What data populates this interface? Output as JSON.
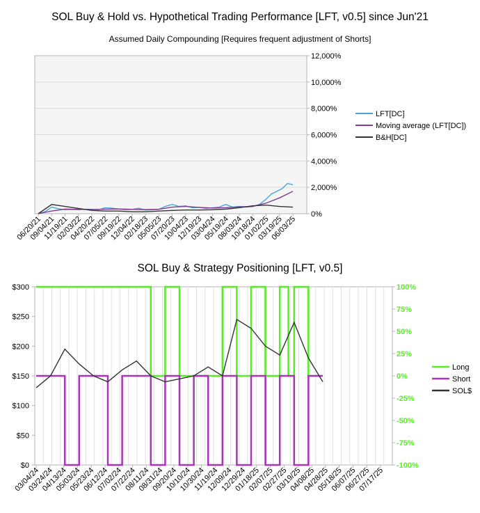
{
  "chart_data": [
    {
      "type": "line",
      "title": "SOL Buy & Hold vs. Hypothetical Trading Performance [LFT, v0.5] since Jun'21",
      "subtitle": "Assumed Daily Compounding [Requires frequent adjustment of Shorts]",
      "y_axis_side": "right",
      "ylim": [
        0,
        12000
      ],
      "y_ticks": [
        "0%",
        "2,000%",
        "4,000%",
        "6,000%",
        "8,000%",
        "10,000%",
        "12,000%"
      ],
      "x_ticks": [
        "06/20/21",
        "09/04/21",
        "11/19/21",
        "02/03/22",
        "04/20/22",
        "07/05/22",
        "09/19/22",
        "12/04/22",
        "02/18/23",
        "05/05/23",
        "07/20/23",
        "10/04/23",
        "12/19/23",
        "03/04/24",
        "05/19/24",
        "08/03/24",
        "10/18/24",
        "01/02/25",
        "03/19/25",
        "06/03/25"
      ],
      "legend": [
        "LFT[DC]",
        "Moving average (LFT[DC])",
        "B&H[DC]"
      ],
      "legend_position": "right",
      "series": [
        {
          "name": "LFT[DC]",
          "color": "#4aa3df",
          "x": [
            0,
            0.5,
            1,
            1.5,
            2,
            2.5,
            3,
            3.5,
            4,
            4.5,
            5,
            5.5,
            6,
            6.5,
            7,
            7.5,
            8,
            8.5,
            9,
            9.5,
            10,
            10.5,
            11,
            11.5,
            12,
            12.5,
            13,
            13.5,
            14,
            14.5,
            15,
            15.5,
            16,
            16.5,
            17,
            17.4,
            17.8,
            18.2,
            18.6,
            19
          ],
          "values": [
            0,
            150,
            500,
            380,
            300,
            320,
            300,
            340,
            330,
            300,
            450,
            420,
            350,
            300,
            330,
            420,
            280,
            300,
            330,
            560,
            700,
            550,
            600,
            450,
            480,
            400,
            450,
            500,
            700,
            500,
            560,
            500,
            540,
            700,
            1100,
            1500,
            1700,
            1900,
            2300,
            2200
          ]
        },
        {
          "name": "Moving average (LFT[DC])",
          "color": "#7e3f8e",
          "x": [
            0,
            1,
            2,
            3,
            4,
            5,
            6,
            7,
            8,
            9,
            10,
            11,
            12,
            13,
            14,
            15,
            16,
            17,
            18,
            19
          ],
          "values": [
            0,
            200,
            350,
            330,
            320,
            340,
            360,
            330,
            310,
            340,
            500,
            550,
            480,
            430,
            460,
            520,
            560,
            800,
            1200,
            1700
          ]
        },
        {
          "name": "B&H[DC]",
          "color": "#333333",
          "x": [
            0,
            1,
            2,
            3,
            4,
            5,
            6,
            7,
            8,
            9,
            10,
            11,
            12,
            13,
            14,
            15,
            16,
            17,
            18,
            19
          ],
          "values": [
            0,
            700,
            550,
            400,
            250,
            200,
            200,
            150,
            150,
            200,
            250,
            280,
            280,
            300,
            350,
            450,
            600,
            650,
            550,
            500
          ]
        }
      ]
    },
    {
      "type": "line",
      "title": "SOL Buy & Strategy Positioning [LFT, v0.5]",
      "ylim_left": [
        0,
        300
      ],
      "y_ticks_left": [
        "$0",
        "$50",
        "$100",
        "$150",
        "$200",
        "$250",
        "$300"
      ],
      "ylim_right": [
        -100,
        100
      ],
      "y_ticks_right": [
        "-100%",
        "-75%",
        "-50%",
        "-25%",
        "0%",
        "25%",
        "50%",
        "75%",
        "100%"
      ],
      "x_ticks": [
        "03/04/24",
        "03/24/24",
        "04/13/24",
        "05/03/24",
        "05/23/24",
        "06/12/24",
        "07/02/24",
        "07/22/24",
        "08/11/24",
        "08/31/24",
        "09/20/24",
        "10/10/24",
        "10/30/24",
        "11/19/24",
        "12/09/24",
        "12/29/24",
        "01/18/25",
        "02/07/25",
        "02/27/25",
        "03/19/25",
        "04/08/25",
        "04/28/25",
        "05/18/25",
        "06/07/25",
        "06/27/25",
        "07/17/25"
      ],
      "legend": [
        "Long",
        "Short",
        "SOL$"
      ],
      "legend_position": "right",
      "series": [
        {
          "name": "Long",
          "color": "#55ee22",
          "axis": "right",
          "x": [
            0,
            8,
            8,
            9,
            9,
            10,
            10,
            13,
            13,
            14,
            14,
            15,
            15,
            16,
            16,
            17,
            17,
            17.6,
            17.6,
            18,
            18,
            19,
            19,
            20
          ],
          "values": [
            100,
            100,
            0,
            0,
            100,
            100,
            0,
            0,
            100,
            100,
            0,
            0,
            100,
            100,
            0,
            0,
            100,
            100,
            0,
            0,
            100,
            100,
            0,
            0
          ]
        },
        {
          "name": "Short",
          "color": "#aa33bb",
          "axis": "right",
          "x": [
            0,
            2,
            2,
            3,
            3,
            5,
            5,
            6,
            6,
            8,
            8,
            9,
            9,
            10,
            10,
            11,
            11,
            12,
            12,
            13,
            13,
            14,
            14,
            15,
            15,
            16,
            16,
            17,
            17,
            18,
            18,
            19,
            19,
            20
          ],
          "values": [
            0,
            0,
            -100,
            -100,
            0,
            0,
            -100,
            -100,
            0,
            0,
            -100,
            -100,
            0,
            0,
            -100,
            -100,
            0,
            0,
            -100,
            -100,
            0,
            0,
            -100,
            -100,
            0,
            0,
            -100,
            -100,
            0,
            0,
            -100,
            -100,
            0,
            0
          ]
        },
        {
          "name": "SOL$",
          "color": "#333333",
          "axis": "left",
          "x": [
            0,
            1,
            2,
            3,
            4,
            5,
            6,
            7,
            8,
            9,
            10,
            11,
            12,
            13,
            14,
            15,
            16,
            17,
            18,
            19,
            20
          ],
          "values": [
            130,
            150,
            195,
            170,
            150,
            140,
            160,
            175,
            150,
            140,
            145,
            150,
            165,
            150,
            245,
            230,
            200,
            185,
            240,
            180,
            140
          ]
        }
      ]
    }
  ]
}
